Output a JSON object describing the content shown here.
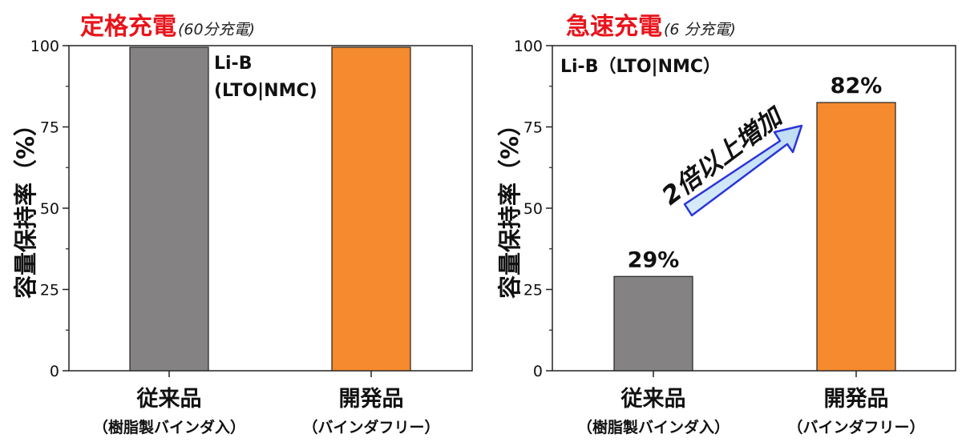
{
  "chart_data": [
    {
      "type": "bar",
      "title": "定格充電",
      "subtitle": "(60分充電)",
      "ylabel": "容量保持率（%）",
      "ylim": [
        0,
        100
      ],
      "yticks": [
        "0",
        "25",
        "50",
        "75",
        "100"
      ],
      "categories": [
        {
          "name": "従来品",
          "sub": "（樹脂製バインダ入）"
        },
        {
          "name": "開発品",
          "sub": "（バインダフリー）"
        }
      ],
      "values": [
        99.5,
        99.5
      ],
      "colors": [
        "#858284",
        "#f58a2e"
      ],
      "annotations": [
        "Li-B",
        "(LTO|NMC)"
      ]
    },
    {
      "type": "bar",
      "title": "急速充電",
      "subtitle": "(6 分充電)",
      "ylabel": "容量保持率（%）",
      "ylim": [
        0,
        100
      ],
      "yticks": [
        "0",
        "25",
        "50",
        "75",
        "100"
      ],
      "categories": [
        {
          "name": "従来品",
          "sub": "（樹脂製バインダ入）"
        },
        {
          "name": "開発品",
          "sub": "（バインダフリー）"
        }
      ],
      "values": [
        29,
        82.5
      ],
      "colors": [
        "#858284",
        "#f58a2e"
      ],
      "data_labels": [
        "29%",
        "82%"
      ],
      "annotations": [
        "Li-B（LTO|NMC）"
      ],
      "arrow_label": "2倍以上増加"
    }
  ]
}
